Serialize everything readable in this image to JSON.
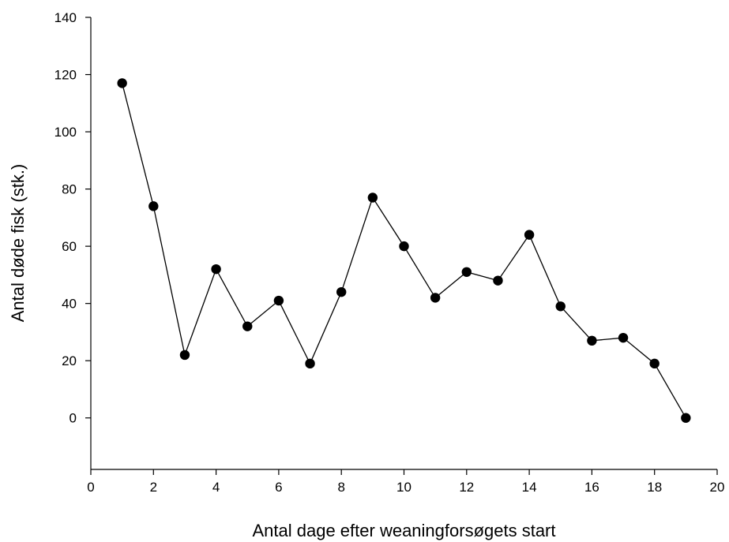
{
  "chart_data": {
    "type": "line",
    "title": "",
    "xlabel": "Antal dage efter weaningforsøgets start",
    "ylabel": "Antal døde fisk (stk.)",
    "xlim": [
      0,
      20
    ],
    "ylim": [
      -18,
      140
    ],
    "xticks": [
      0,
      2,
      4,
      6,
      8,
      10,
      12,
      14,
      16,
      18,
      20
    ],
    "yticks": [
      0,
      20,
      40,
      60,
      80,
      100,
      120,
      140
    ],
    "grid": false,
    "legend": "none",
    "marker": "filled-circle",
    "line_color": "#000000",
    "series": [
      {
        "x": [
          1,
          2,
          3,
          4,
          5,
          6,
          7,
          8,
          9,
          10,
          11,
          12,
          13,
          14,
          15,
          16,
          17,
          18,
          19
        ],
        "values": [
          117,
          74,
          22,
          52,
          32,
          41,
          19,
          44,
          77,
          60,
          42,
          51,
          48,
          64,
          39,
          27,
          28,
          19,
          0
        ]
      }
    ]
  }
}
